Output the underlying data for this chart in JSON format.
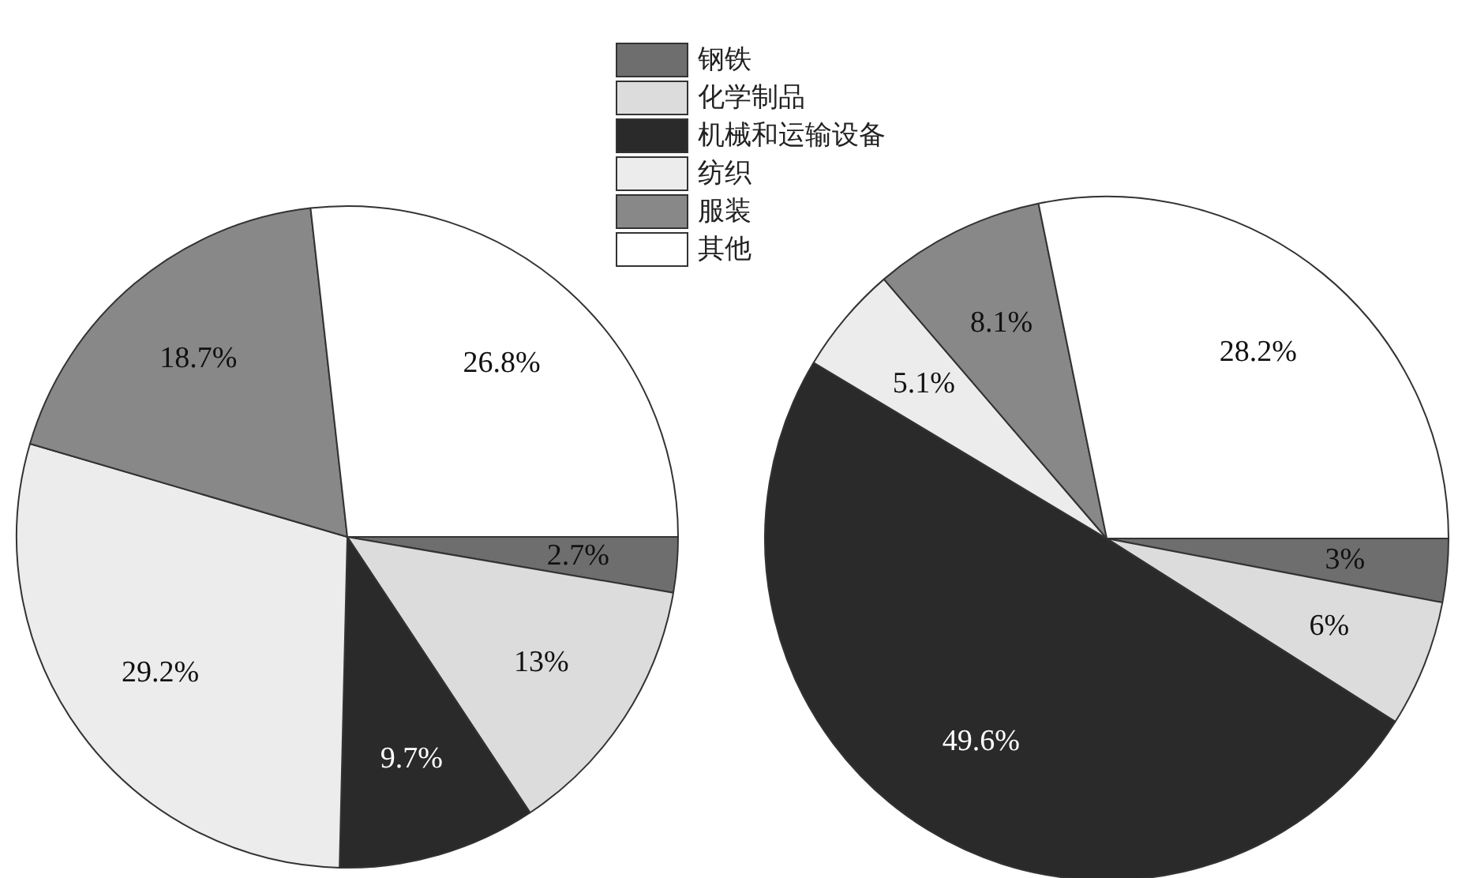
{
  "chart_data": [
    {
      "type": "pie",
      "categories": [
        "钢铁",
        "化学制品",
        "机械和运输设备",
        "纺织",
        "服装",
        "其他"
      ],
      "values": [
        2.7,
        13,
        9.7,
        29.2,
        18.7,
        26.8
      ],
      "colors": [
        "#6e6e6e",
        "#dcdcdc",
        "#2a2a2a",
        "#ececec",
        "#888888",
        "#ffffff"
      ],
      "value_labels": [
        "2.7%",
        "13%",
        "9.7%",
        "29.2%",
        "18.7%",
        "26.8%"
      ],
      "legend": "top right"
    },
    {
      "type": "pie",
      "categories": [
        null,
        null,
        null,
        null,
        null,
        null
      ],
      "values": [
        3,
        6,
        49.6,
        5.1,
        8.1,
        28.2
      ],
      "colors": [
        "#6e6e6e",
        "#dcdcdc",
        "#2a2a2a",
        "#ececec",
        "#888888",
        "#ffffff"
      ],
      "value_labels": [
        "3%",
        "6%",
        "49.6%",
        "5.1%",
        "8.1%",
        "28.2%"
      ]
    }
  ]
}
